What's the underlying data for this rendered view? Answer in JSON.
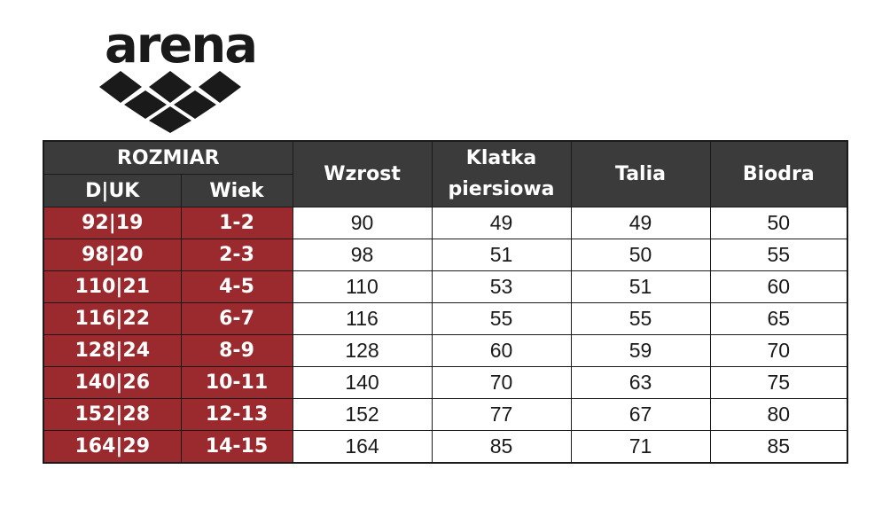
{
  "logo": {
    "text": "arena",
    "mark": "arena-diamond-logo-icon"
  },
  "table": {
    "group_header": "ROZMIAR",
    "sub_headers": [
      "D|UK",
      "Wiek"
    ],
    "headers": [
      "Wzrost",
      "Klatka piersiowa",
      "Talia",
      "Biodra"
    ],
    "rows": [
      {
        "size": "92|19",
        "age": "1-2",
        "height": "90",
        "chest": "49",
        "waist": "49",
        "hips": "50"
      },
      {
        "size": "98|20",
        "age": "2-3",
        "height": "98",
        "chest": "51",
        "waist": "50",
        "hips": "55"
      },
      {
        "size": "110|21",
        "age": "4-5",
        "height": "110",
        "chest": "53",
        "waist": "51",
        "hips": "60"
      },
      {
        "size": "116|22",
        "age": "6-7",
        "height": "116",
        "chest": "55",
        "waist": "55",
        "hips": "65"
      },
      {
        "size": "128|24",
        "age": "8-9",
        "height": "128",
        "chest": "60",
        "waist": "59",
        "hips": "70"
      },
      {
        "size": "140|26",
        "age": "10-11",
        "height": "140",
        "chest": "70",
        "waist": "63",
        "hips": "75"
      },
      {
        "size": "152|28",
        "age": "12-13",
        "height": "152",
        "chest": "77",
        "waist": "67",
        "hips": "80"
      },
      {
        "size": "164|29",
        "age": "14-15",
        "height": "164",
        "chest": "85",
        "waist": "71",
        "hips": "85"
      }
    ]
  },
  "colors": {
    "header_bg": "#3b3b3b",
    "size_bg": "#9a2a2e",
    "text": "#1a1a1a"
  }
}
